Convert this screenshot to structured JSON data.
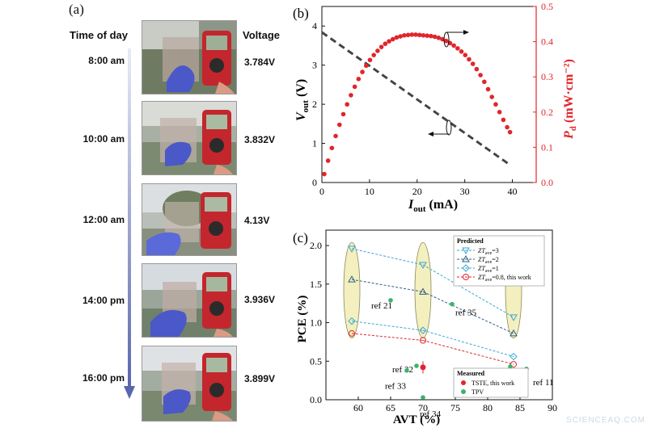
{
  "panel_a": {
    "label": "(a)",
    "header_time": "Time of day",
    "header_voltage": "Voltage",
    "rows": [
      {
        "time": "8:00 am",
        "voltage": "3.784V"
      },
      {
        "time": "10:00 am",
        "voltage": "3.832V"
      },
      {
        "time": "12:00 am",
        "voltage": "4.13V"
      },
      {
        "time": "14:00 pm",
        "voltage": "3.936V"
      },
      {
        "time": "16:00 pm",
        "voltage": "3.899V"
      }
    ]
  },
  "watermark": "SCIENCEAQ.COM",
  "colors": {
    "black": "#111111",
    "red": "#e0262b",
    "green": "#3bb36a",
    "cyan": "#38a7d6",
    "navy": "#2e5f86",
    "oval": "#f4efbf",
    "arrow": "#6a76b8"
  },
  "chart_data": [
    {
      "type": "line",
      "panel_label": "(b)",
      "xlabel": "I",
      "xlabel_sub": "out",
      "xlabel_unit": "(mA)",
      "ylabel": "V",
      "ylabel_sub": "out",
      "ylabel_unit": "(V)",
      "y2label": "P",
      "y2label_sub": "d",
      "y2label_unit": "(mW·cm⁻²)",
      "xlim": [
        0,
        45
      ],
      "ylim": [
        0,
        4.5
      ],
      "y2lim": [
        0,
        0.5
      ],
      "x_ticks": [
        "0",
        "10",
        "20",
        "30",
        "40"
      ],
      "y_ticks": [
        "0",
        "1",
        "2",
        "3",
        "4"
      ],
      "y2_ticks": [
        "0.0",
        "0.1",
        "0.2",
        "0.3",
        "0.4",
        "0.5"
      ],
      "series": [
        {
          "axis": "left",
          "style": "dashed",
          "color": "#444444",
          "x": [
            0,
            39.5
          ],
          "y": [
            3.84,
            0.45
          ]
        },
        {
          "axis": "right",
          "style": "dots",
          "color": "#e0262b",
          "x": [
            0.5,
            1.3,
            2.1,
            2.9,
            3.7,
            4.5,
            5.3,
            6.1,
            6.9,
            7.7,
            8.5,
            9.3,
            10.1,
            10.9,
            11.7,
            12.5,
            13.3,
            14.1,
            14.9,
            15.7,
            16.5,
            17.3,
            18.1,
            18.9,
            19.7,
            20.5,
            21.3,
            22.1,
            22.9,
            23.7,
            24.5,
            25.3,
            26.1,
            26.9,
            27.7,
            28.5,
            29.3,
            30.1,
            30.9,
            31.7,
            32.5,
            33.3,
            34.1,
            34.9,
            35.7,
            36.5,
            37.3,
            38.1,
            38.9,
            39.5
          ],
          "y": [
            0.024,
            0.062,
            0.098,
            0.132,
            0.164,
            0.194,
            0.222,
            0.248,
            0.272,
            0.294,
            0.314,
            0.332,
            0.348,
            0.362,
            0.374,
            0.385,
            0.394,
            0.401,
            0.407,
            0.412,
            0.415,
            0.418,
            0.419,
            0.42,
            0.42,
            0.419,
            0.418,
            0.417,
            0.416,
            0.414,
            0.411,
            0.407,
            0.402,
            0.396,
            0.389,
            0.381,
            0.372,
            0.362,
            0.35,
            0.337,
            0.322,
            0.305,
            0.286,
            0.265,
            0.243,
            0.222,
            0.2,
            0.178,
            0.157,
            0.143
          ]
        }
      ]
    },
    {
      "type": "scatter",
      "panel_label": "(c)",
      "xlabel": "AVT (%)",
      "ylabel": "PCE (%)",
      "xlim": [
        55,
        90
      ],
      "ylim": [
        0,
        2.2
      ],
      "x_ticks": [
        "60",
        "65",
        "70",
        "75",
        "80",
        "85",
        "90"
      ],
      "y_ticks": [
        "0.0",
        "0.5",
        "1.0",
        "1.5",
        "2.0"
      ],
      "legend_predicted": {
        "title": "Predicted",
        "items": [
          {
            "label": "ZTave=3",
            "z": "ZT",
            "sub": "ave",
            "rest": "=3"
          },
          {
            "label": "ZTave=2",
            "z": "ZT",
            "sub": "ave",
            "rest": "=2"
          },
          {
            "label": "ZTave=1",
            "z": "ZT",
            "sub": "ave",
            "rest": "=1"
          },
          {
            "label": "ZTave=0.8, this work",
            "z": "ZT",
            "sub": "ave",
            "rest": "=0.8, this work"
          }
        ]
      },
      "legend_measured": {
        "title": "Measured",
        "items": [
          {
            "label": "TSTE, this work"
          },
          {
            "label": "TPV"
          }
        ]
      },
      "predicted_series": [
        {
          "name": "ZTave=3",
          "marker": "triangle-down",
          "color": "#38a7d6",
          "x": [
            59,
            70,
            84
          ],
          "y": [
            1.96,
            1.75,
            1.07
          ]
        },
        {
          "name": "ZTave=2",
          "marker": "triangle-up",
          "color": "#2e5f86",
          "x": [
            59,
            70,
            84
          ],
          "y": [
            1.56,
            1.4,
            0.86
          ]
        },
        {
          "name": "ZTave=1",
          "marker": "diamond",
          "color": "#38a7d6",
          "x": [
            59,
            70,
            84
          ],
          "y": [
            1.02,
            0.9,
            0.56
          ]
        },
        {
          "name": "ZTave=0.8, this work",
          "marker": "circle-open",
          "color": "#e0262b",
          "x": [
            59,
            70,
            84
          ],
          "y": [
            0.86,
            0.77,
            0.46
          ]
        }
      ],
      "measured_tste": {
        "x": 70,
        "y": 0.42,
        "err": 0.08
      },
      "tpv_points": [
        {
          "label": "ref 21",
          "x": 65,
          "y": 1.29
        },
        {
          "label": "ref 35",
          "x": 74.5,
          "y": 1.24
        },
        {
          "label": "ref 32",
          "x": 69,
          "y": 0.44
        },
        {
          "label": "ref 33",
          "x": 67.5,
          "y": 0.38
        },
        {
          "label": "ref 34",
          "x": 70,
          "y": 0.03
        },
        {
          "label": "ref 9",
          "x": 83.5,
          "y": 0.43
        },
        {
          "label": "ref 11",
          "x": 86,
          "y": 0.4
        }
      ]
    }
  ]
}
